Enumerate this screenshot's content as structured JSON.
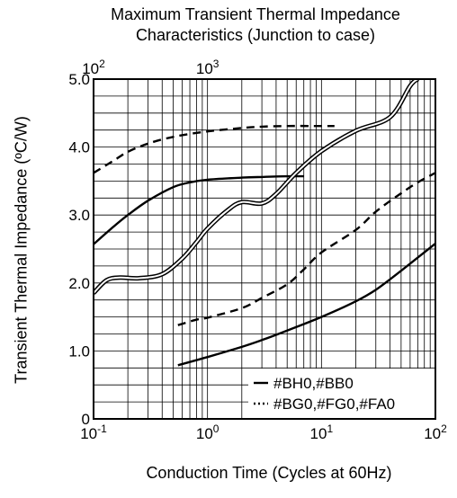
{
  "chart_data": {
    "type": "line",
    "title": "Maximum Transient Thermal Impedance",
    "subtitle": "Characteristics (Junction to case)",
    "xlabel": "Conduction Time (Cycles at 60Hz)",
    "ylabel": "Transient Thermal Impedance  (ºC/W)",
    "x_scale": "log",
    "xlim": [
      0.1,
      100
    ],
    "ylim": [
      0,
      5
    ],
    "x_ticks": [
      {
        "base": "10",
        "exp": "-1",
        "value": 0.1
      },
      {
        "base": "10",
        "exp": "0",
        "value": 1
      },
      {
        "base": "10",
        "exp": "1",
        "value": 10
      },
      {
        "base": "10",
        "exp": "2",
        "value": 100
      }
    ],
    "y_ticks": [
      {
        "label": "0",
        "value": 0
      },
      {
        "label": "1.0",
        "value": 1
      },
      {
        "label": "2.0",
        "value": 2
      },
      {
        "label": "3.0",
        "value": 3
      },
      {
        "label": "4.0",
        "value": 4
      },
      {
        "label": "5.0",
        "value": 5
      }
    ],
    "top_x_ticks": [
      {
        "base": "10",
        "exp": "2",
        "value": 100
      },
      {
        "base": "10",
        "exp": "3",
        "value": 1000
      }
    ],
    "top_x_scale": "log, 10^2 at x=0.1, 10^3 at x=1 (seconds-style secondary scale)",
    "grid": true,
    "legend": [
      {
        "label": "#BH0,#BB0",
        "style": "solid"
      },
      {
        "label": "#BG0,#FG0,#FA0",
        "style": "dotted"
      }
    ],
    "legend_position": "bottom-right",
    "series": [
      {
        "style": "solid",
        "x": [
          0.1,
          0.15,
          0.2,
          0.3,
          0.5,
          0.7,
          1,
          2,
          3,
          5,
          7
        ],
        "y": [
          2.57,
          2.83,
          3.0,
          3.21,
          3.41,
          3.48,
          3.52,
          3.55,
          3.56,
          3.57,
          3.57
        ]
      },
      {
        "style": "dashed",
        "x": [
          0.1,
          0.15,
          0.2,
          0.3,
          0.5,
          1,
          2,
          3,
          5,
          10,
          13
        ],
        "y": [
          3.62,
          3.8,
          3.93,
          4.05,
          4.15,
          4.23,
          4.28,
          4.3,
          4.31,
          4.31,
          4.31
        ]
      },
      {
        "style": "double",
        "x": [
          0.1,
          0.13,
          0.17,
          0.25,
          0.4,
          0.6,
          0.8,
          1,
          1.5,
          2,
          3,
          4,
          6,
          10,
          20,
          40,
          60,
          70
        ],
        "y": [
          1.85,
          2.04,
          2.08,
          2.07,
          2.13,
          2.36,
          2.6,
          2.8,
          3.07,
          3.19,
          3.17,
          3.31,
          3.62,
          3.94,
          4.24,
          4.44,
          4.9,
          5.0
        ]
      },
      {
        "style": "dashed",
        "x": [
          0.55,
          0.8,
          1,
          2,
          3,
          5,
          7,
          10,
          20,
          30,
          50,
          70,
          100
        ],
        "y": [
          1.38,
          1.46,
          1.49,
          1.63,
          1.78,
          1.98,
          2.2,
          2.45,
          2.78,
          3.05,
          3.32,
          3.48,
          3.62
        ]
      },
      {
        "style": "solid",
        "x": [
          0.55,
          1,
          2,
          3,
          5,
          10,
          20,
          30,
          50,
          100
        ],
        "y": [
          0.79,
          0.91,
          1.06,
          1.16,
          1.3,
          1.5,
          1.73,
          1.9,
          2.18,
          2.58
        ]
      }
    ]
  }
}
